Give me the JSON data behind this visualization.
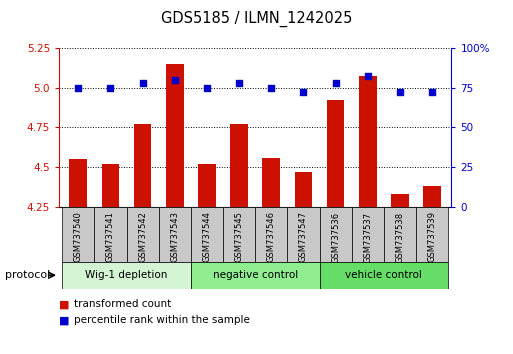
{
  "title": "GDS5185 / ILMN_1242025",
  "samples": [
    "GSM737540",
    "GSM737541",
    "GSM737542",
    "GSM737543",
    "GSM737544",
    "GSM737545",
    "GSM737546",
    "GSM737547",
    "GSM737536",
    "GSM737537",
    "GSM737538",
    "GSM737539"
  ],
  "red_values": [
    4.55,
    4.52,
    4.77,
    5.15,
    4.52,
    4.77,
    4.56,
    4.47,
    4.92,
    5.07,
    4.33,
    4.38
  ],
  "blue_values": [
    75,
    75,
    78,
    80,
    75,
    78,
    75,
    72,
    78,
    82,
    72,
    72
  ],
  "ylim_left": [
    4.25,
    5.25
  ],
  "ylim_right": [
    0,
    100
  ],
  "yticks_left": [
    4.25,
    4.5,
    4.75,
    5.0,
    5.25
  ],
  "yticks_right": [
    0,
    25,
    50,
    75,
    100
  ],
  "ytick_right_labels": [
    "0",
    "25",
    "50",
    "75",
    "100%"
  ],
  "groups": [
    {
      "label": "Wig-1 depletion",
      "start": 0,
      "end": 4,
      "color": "#d4f5d4"
    },
    {
      "label": "negative control",
      "start": 4,
      "end": 8,
      "color": "#90ee90"
    },
    {
      "label": "vehicle control",
      "start": 8,
      "end": 12,
      "color": "#66dd66"
    }
  ],
  "bar_color": "#cc1100",
  "dot_color": "#0000cc",
  "bar_width": 0.55,
  "grid_color": "black",
  "grid_linestyle": ":",
  "grid_linewidth": 0.7,
  "left_axis_color": "#cc1100",
  "right_axis_color": "#0000cc",
  "background_color": "white",
  "plot_bg_color": "white",
  "tick_label_area_color": "#c8c8c8",
  "legend_red_label": "transformed count",
  "legend_blue_label": "percentile rank within the sample",
  "protocol_label": "protocol"
}
